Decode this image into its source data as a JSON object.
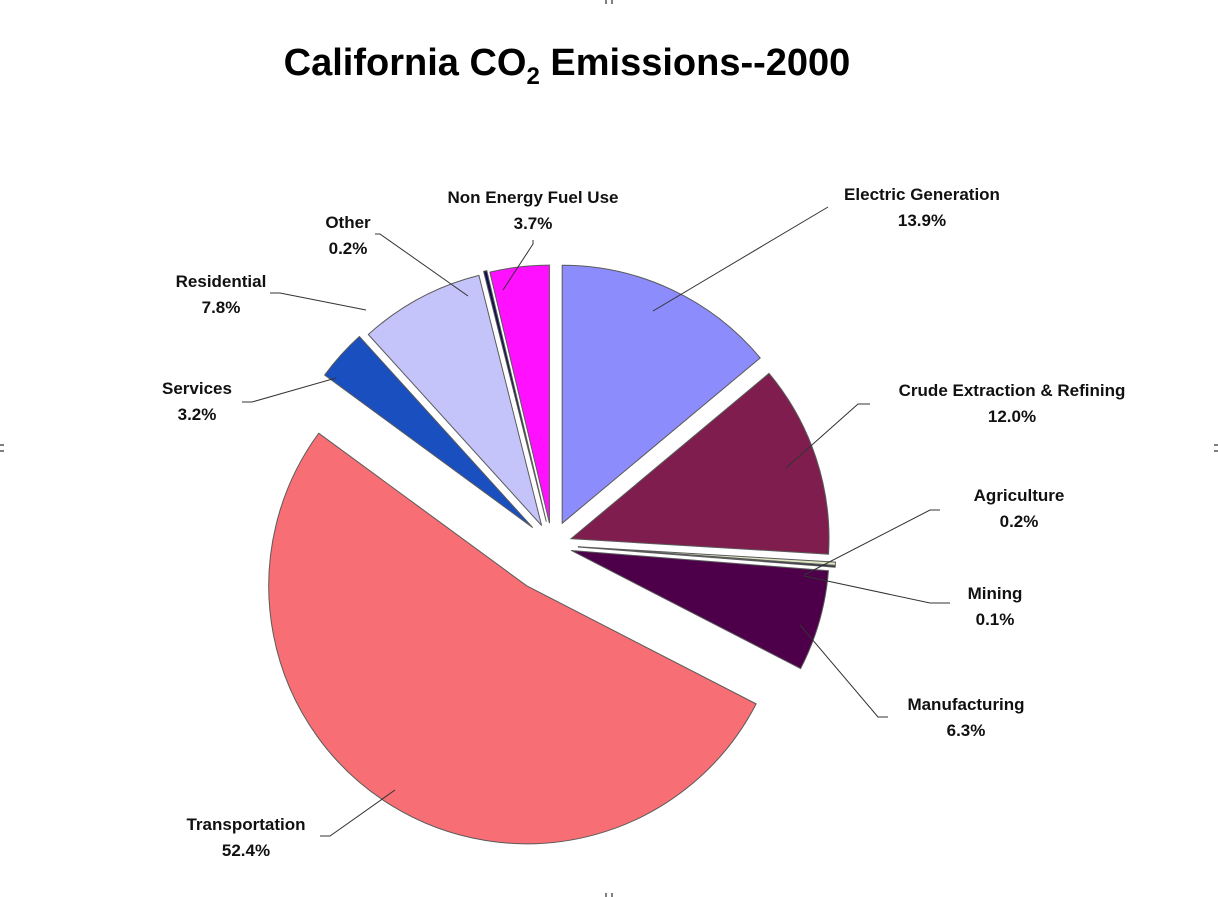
{
  "chart_data": {
    "type": "pie",
    "title": {
      "main": "California CO",
      "subscript": "2",
      "suffix": " Emissions--2000"
    },
    "start_angle_deg": 0,
    "direction": "clockwise",
    "exploded": true,
    "slices": [
      {
        "name": "Electric Generation",
        "value": 13.9,
        "label": "13.9%",
        "color": "#8c8cfc"
      },
      {
        "name": "Crude Extraction & Refining",
        "value": 12.0,
        "label": "12.0%",
        "color": "#7f1e4e"
      },
      {
        "name": "Agriculture",
        "value": 0.2,
        "label": "0.2%",
        "color": "#dfe8c4"
      },
      {
        "name": "Mining",
        "value": 0.1,
        "label": "0.1%",
        "color": "#1f1f3a"
      },
      {
        "name": "Manufacturing",
        "value": 6.3,
        "label": "6.3%",
        "color": "#4d0049"
      },
      {
        "name": "Transportation",
        "value": 52.4,
        "label": "52.4%",
        "color": "#f76f74"
      },
      {
        "name": "Services",
        "value": 3.2,
        "label": "3.2%",
        "color": "#1a4fc0"
      },
      {
        "name": "Residential",
        "value": 7.8,
        "label": "7.8%",
        "color": "#c4c4fa"
      },
      {
        "name": "Other",
        "value": 0.2,
        "label": "0.2%",
        "color": "#101050"
      },
      {
        "name": "Non Energy Fuel Use",
        "value": 3.7,
        "label": "3.7%",
        "color": "#ff10ff"
      }
    ]
  }
}
